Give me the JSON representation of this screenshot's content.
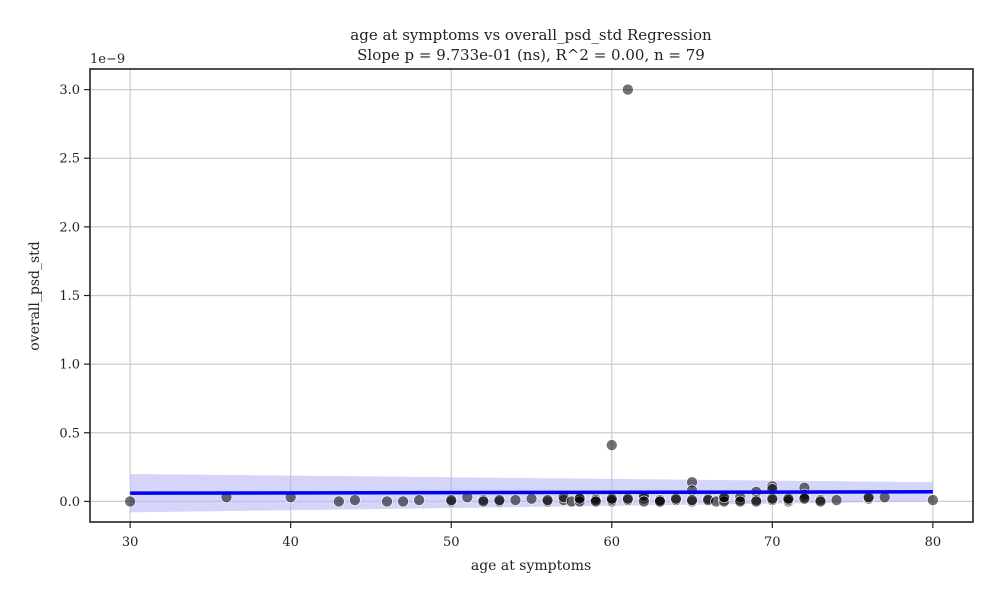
{
  "chart_data": {
    "type": "scatter",
    "title": "age at symptoms vs overall_psd_std Regression",
    "subtitle": "Slope p = 9.733e-01 (ns), R^2 = 0.00, n = 79",
    "xlabel": "age at symptoms",
    "ylabel": "overall_psd_std",
    "y_scale_note": "1e−9",
    "xlim": [
      27.5,
      82.5
    ],
    "ylim": [
      -0.15,
      3.15
    ],
    "xticks": [
      30,
      40,
      50,
      60,
      70,
      80
    ],
    "yticks": [
      0.0,
      0.5,
      1.0,
      1.5,
      2.0,
      2.5,
      3.0
    ],
    "grid": true,
    "colors": {
      "points": "#000000",
      "fit_line": "#0000ee",
      "ci_band": "#b3b3f5",
      "grid": "#cccccc",
      "axes": "#222222"
    },
    "regression": {
      "x": [
        30,
        80
      ],
      "y": [
        0.06,
        0.07
      ],
      "ci_lower": [
        -0.08,
        0.0
      ],
      "ci_upper": [
        0.2,
        0.14
      ]
    },
    "points": [
      {
        "x": 30,
        "y": 0.0
      },
      {
        "x": 36,
        "y": 0.03
      },
      {
        "x": 40,
        "y": 0.03
      },
      {
        "x": 43,
        "y": 0.0
      },
      {
        "x": 44,
        "y": 0.01
      },
      {
        "x": 46,
        "y": 0.0
      },
      {
        "x": 47,
        "y": 0.0
      },
      {
        "x": 50,
        "y": 0.0
      },
      {
        "x": 50,
        "y": 0.01
      },
      {
        "x": 51,
        "y": 0.03
      },
      {
        "x": 52,
        "y": 0.01
      },
      {
        "x": 53,
        "y": 0.0
      },
      {
        "x": 53,
        "y": 0.01
      },
      {
        "x": 54,
        "y": 0.01
      },
      {
        "x": 56,
        "y": 0.0
      },
      {
        "x": 56,
        "y": 0.01
      },
      {
        "x": 57,
        "y": 0.01
      },
      {
        "x": 57,
        "y": 0.03
      },
      {
        "x": 57.5,
        "y": 0.0
      },
      {
        "x": 58,
        "y": 0.01
      },
      {
        "x": 58,
        "y": 0.03
      },
      {
        "x": 58,
        "y": 0.0
      },
      {
        "x": 59,
        "y": 0.02
      },
      {
        "x": 59,
        "y": 0.01
      },
      {
        "x": 60,
        "y": 0.41
      },
      {
        "x": 60,
        "y": 0.0
      },
      {
        "x": 60,
        "y": 0.01
      },
      {
        "x": 60,
        "y": 0.02
      },
      {
        "x": 61,
        "y": 3.0
      },
      {
        "x": 61,
        "y": 0.01
      },
      {
        "x": 61,
        "y": 0.02
      },
      {
        "x": 62,
        "y": 0.02
      },
      {
        "x": 62,
        "y": 0.04
      },
      {
        "x": 63,
        "y": 0.0
      },
      {
        "x": 63,
        "y": 0.01
      },
      {
        "x": 63,
        "y": 0.0
      },
      {
        "x": 64,
        "y": 0.01
      },
      {
        "x": 65,
        "y": 0.14
      },
      {
        "x": 65,
        "y": 0.08
      },
      {
        "x": 65,
        "y": 0.0
      },
      {
        "x": 65,
        "y": 0.01
      },
      {
        "x": 66,
        "y": 0.02
      },
      {
        "x": 66,
        "y": 0.01
      },
      {
        "x": 66.5,
        "y": 0.0
      },
      {
        "x": 67,
        "y": 0.01
      },
      {
        "x": 67,
        "y": 0.02
      },
      {
        "x": 67,
        "y": 0.0
      },
      {
        "x": 68,
        "y": 0.01
      },
      {
        "x": 68,
        "y": 0.03
      },
      {
        "x": 68,
        "y": 0.0
      },
      {
        "x": 69,
        "y": 0.07
      },
      {
        "x": 69,
        "y": 0.01
      },
      {
        "x": 70,
        "y": 0.11
      },
      {
        "x": 70,
        "y": 0.09
      },
      {
        "x": 70,
        "y": 0.01
      },
      {
        "x": 70,
        "y": 0.02
      },
      {
        "x": 71,
        "y": 0.0
      },
      {
        "x": 71,
        "y": 0.01
      },
      {
        "x": 72,
        "y": 0.1
      },
      {
        "x": 72,
        "y": 0.05
      },
      {
        "x": 72,
        "y": 0.03
      },
      {
        "x": 72,
        "y": 0.02
      },
      {
        "x": 73,
        "y": 0.01
      },
      {
        "x": 73,
        "y": 0.0
      },
      {
        "x": 76,
        "y": 0.02
      },
      {
        "x": 76,
        "y": 0.03
      },
      {
        "x": 77,
        "y": 0.03
      },
      {
        "x": 80,
        "y": 0.01
      },
      {
        "x": 55,
        "y": 0.02
      },
      {
        "x": 52,
        "y": 0.0
      },
      {
        "x": 48,
        "y": 0.01
      },
      {
        "x": 62,
        "y": 0.0
      },
      {
        "x": 64,
        "y": 0.02
      },
      {
        "x": 59,
        "y": 0.0
      },
      {
        "x": 67,
        "y": 0.03
      },
      {
        "x": 69,
        "y": 0.0
      },
      {
        "x": 71,
        "y": 0.02
      },
      {
        "x": 74,
        "y": 0.01
      },
      {
        "x": 58,
        "y": 0.02
      }
    ]
  }
}
